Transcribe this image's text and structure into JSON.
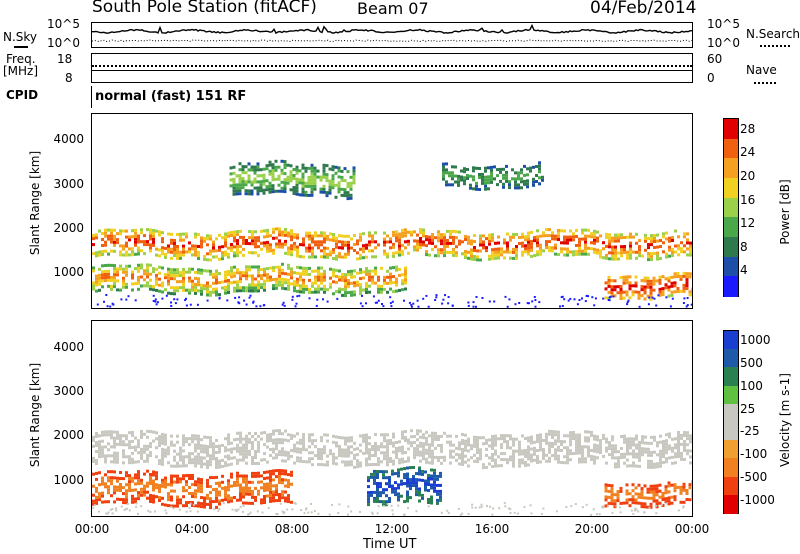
{
  "header": {
    "station": "South Pole Station (fitACF)",
    "beam": "Beam 07",
    "date": "04/Feb/2014"
  },
  "nsky_panel": {
    "left_label": "N.Sky",
    "right_label": "N.Search",
    "left_ticks": [
      "10^5",
      "10^0"
    ],
    "right_ticks": [
      "10^5",
      "10^0"
    ]
  },
  "freq_panel": {
    "left_label_1": "Freq.",
    "left_label_2": "[MHz]",
    "left_ticks": [
      "18",
      "8"
    ],
    "right_label": "Nave",
    "right_ticks": [
      "60",
      "0"
    ]
  },
  "cpid": {
    "label": "CPID",
    "value": "normal (fast) 151 RF"
  },
  "colors": {
    "power_scale": [
      "#1a1aff",
      "#1d4fa8",
      "#2f7a4d",
      "#4aa84a",
      "#9ad04a",
      "#f0d020",
      "#f5a020",
      "#f06010",
      "#e00000"
    ],
    "velocity_scale": [
      "#e00000",
      "#f04010",
      "#f08020",
      "#f0a030",
      "#c8c8c0",
      "#c8c8c0",
      "#60c040",
      "#2a8050",
      "#1e5aa8",
      "#1a3fd0"
    ],
    "ground_scatter": "#c8c8c0"
  },
  "chart_data": [
    {
      "type": "heatmap",
      "title": "Power",
      "ylabel": "Slant Range [km]",
      "ylim": [
        200,
        4600
      ],
      "yticks": [
        "1000",
        "2000",
        "3000",
        "4000"
      ],
      "xlim": [
        "00:00",
        "24:00"
      ],
      "colorbar": {
        "label": "Power [dB]",
        "ticks": [
          "4",
          "8",
          "12",
          "16",
          "20",
          "24",
          "28"
        ],
        "range": [
          0,
          30
        ]
      },
      "features": [
        {
          "name": "main band",
          "x_hours": [
            0,
            24
          ],
          "range_km": [
            1400,
            2000
          ],
          "power_db": [
            12,
            28
          ]
        },
        {
          "name": "lower band",
          "x_hours": [
            0,
            12.5
          ],
          "range_km": [
            600,
            1200
          ],
          "power_db": [
            8,
            24
          ]
        },
        {
          "name": "upper scatter",
          "x_hours": [
            5.5,
            10.5
          ],
          "range_km": [
            2800,
            3500
          ],
          "power_db": [
            4,
            16
          ]
        },
        {
          "name": "upper diagonal",
          "x_hours": [
            14,
            18
          ],
          "range_km": [
            3000,
            3500
          ],
          "power_db": [
            4,
            12
          ]
        },
        {
          "name": "late lower band",
          "x_hours": [
            20.5,
            24
          ],
          "range_km": [
            500,
            1000
          ],
          "power_db": [
            16,
            28
          ]
        }
      ]
    },
    {
      "type": "heatmap",
      "title": "Velocity",
      "ylabel": "Slant Range [km]",
      "ylim": [
        200,
        4600
      ],
      "yticks": [
        "1000",
        "2000",
        "3000",
        "4000"
      ],
      "xlim": [
        "00:00",
        "24:00"
      ],
      "xticks": [
        "00:00",
        "04:00",
        "08:00",
        "12:00",
        "16:00",
        "20:00",
        "00:00"
      ],
      "xlabel": "Time UT",
      "colorbar": {
        "label": "Velocity [m s-1]",
        "ticks": [
          "1000",
          "500",
          "100",
          "25",
          "-25",
          "-100",
          "-500",
          "-1000"
        ],
        "range": [
          -1000,
          1000
        ]
      },
      "features": [
        {
          "name": "ground scatter band",
          "x_hours": [
            0,
            24
          ],
          "range_km": [
            1400,
            2100
          ],
          "velocity": [
            -25,
            25
          ]
        },
        {
          "name": "negative velocity region",
          "x_hours": [
            0,
            8
          ],
          "range_km": [
            500,
            1200
          ],
          "velocity": [
            -500,
            -100
          ]
        },
        {
          "name": "positive velocity region",
          "x_hours": [
            11,
            14
          ],
          "range_km": [
            500,
            1300
          ],
          "velocity": [
            100,
            1000
          ]
        },
        {
          "name": "late negative region",
          "x_hours": [
            20.5,
            24
          ],
          "range_km": [
            500,
            1000
          ],
          "velocity": [
            -500,
            -100
          ]
        }
      ]
    }
  ],
  "axis_bottom": {
    "xlabel": "Time UT",
    "ticks": [
      "00:00",
      "04:00",
      "08:00",
      "12:00",
      "16:00",
      "20:00",
      "00:00"
    ]
  }
}
